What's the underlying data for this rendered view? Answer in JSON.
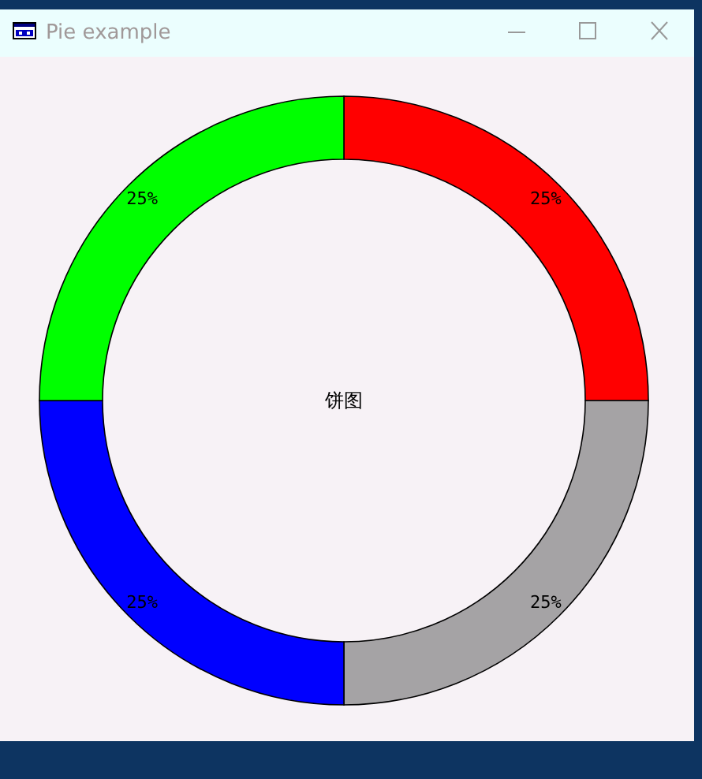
{
  "chart_data": {
    "type": "donut",
    "title": "Pie example",
    "annotations": [
      "饼图"
    ],
    "categories": [
      null,
      null,
      null,
      null
    ],
    "values": [
      25,
      25,
      25,
      25
    ],
    "colors": [
      "#ff0000",
      "#a5a3a5",
      "#0000ff",
      "#00ff00"
    ],
    "value_labels": [
      "25%",
      "25%",
      "25%",
      "25%"
    ]
  }
}
